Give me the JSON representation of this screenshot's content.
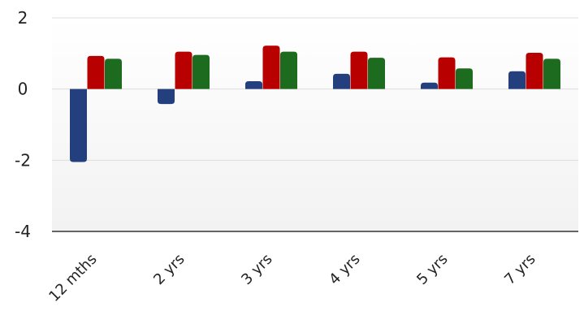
{
  "chart_data": {
    "type": "bar",
    "categories": [
      "12 mths",
      "2 yrs",
      "3 yrs",
      "4 yrs",
      "5 yrs",
      "7 yrs"
    ],
    "series": [
      {
        "color": "#233f7e",
        "values": [
          -2.05,
          -0.42,
          0.22,
          0.43,
          0.18,
          0.5
        ]
      },
      {
        "color": "#b80000",
        "values": [
          0.93,
          1.05,
          1.22,
          1.05,
          0.89,
          1.02
        ]
      },
      {
        "color": "#1d6b1f",
        "values": [
          0.85,
          0.96,
          1.05,
          0.88,
          0.58,
          0.85
        ]
      }
    ],
    "ylim": [
      -4,
      2
    ],
    "yticks": [
      2,
      0,
      -2,
      -4
    ],
    "grid": true,
    "background_gradient": [
      "#ffffff",
      "#f2f2f2"
    ]
  }
}
